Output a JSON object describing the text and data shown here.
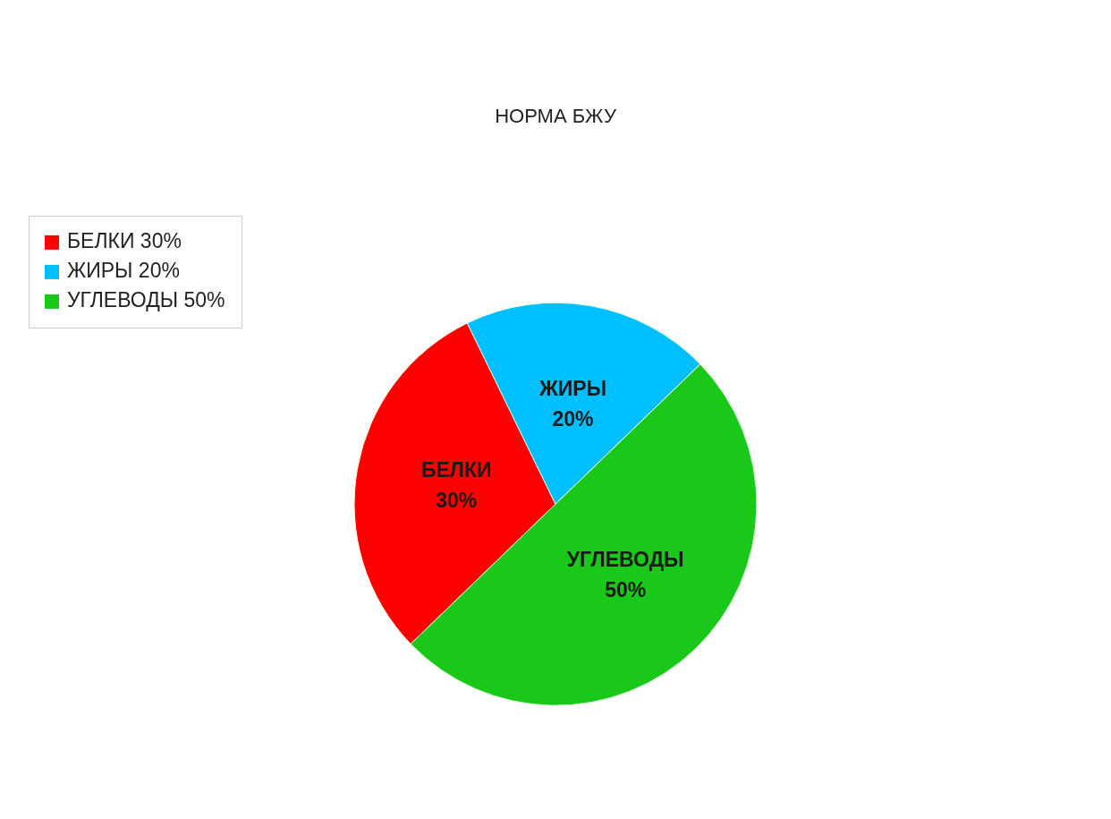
{
  "chart_data": {
    "type": "pie",
    "title": "НОРМА БЖУ",
    "categories": [
      "БЕЛКИ",
      "ЖИРЫ",
      "УГЛЕВОДЫ"
    ],
    "values": [
      30,
      20,
      50
    ],
    "value_labels": [
      "30%",
      "20%",
      "50%"
    ],
    "colors": [
      "#ff0000",
      "#00bfff",
      "#19c819"
    ],
    "legend": "top left"
  }
}
